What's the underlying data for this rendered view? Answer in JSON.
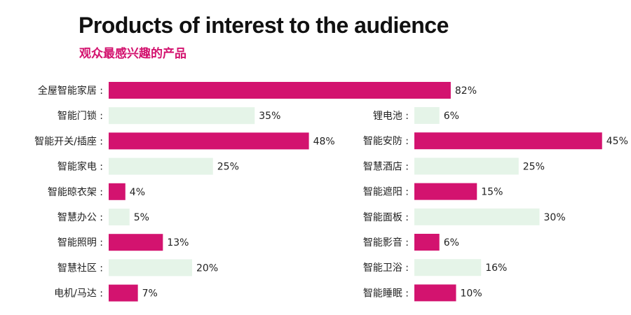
{
  "header": {
    "title": "Products of interest to the audience",
    "subtitle": "观众最感兴趣的产品"
  },
  "colors": {
    "highlight": "#d3136f",
    "light": "#e5f4e8"
  },
  "chart_data": {
    "type": "bar",
    "orientation": "horizontal",
    "title": "Products of interest to the audience",
    "subtitle": "观众最感兴趣的产品",
    "unit": "%",
    "xlim": [
      0,
      100
    ],
    "panels": [
      {
        "name": "left",
        "categories": [
          "全屋智能家居",
          "智能门锁",
          "智能开关/插座",
          "智能家电",
          "智能晾衣架",
          "智慧办公",
          "智能照明",
          "智慧社区",
          "电机/马达"
        ],
        "values": [
          82,
          35,
          48,
          25,
          4,
          5,
          13,
          20,
          7
        ],
        "value_labels": [
          "82%",
          "35%",
          "48%",
          "25%",
          "4%",
          "5%",
          "13%",
          "20%",
          "7%"
        ],
        "highlight": [
          true,
          false,
          true,
          false,
          true,
          false,
          true,
          false,
          true
        ]
      },
      {
        "name": "right",
        "categories": [
          "锂电池",
          "智能安防",
          "智慧酒店",
          "智能遮阳",
          "智能面板",
          "智能影音",
          "智能卫浴",
          "智能睡眠"
        ],
        "values": [
          6,
          45,
          25,
          15,
          30,
          6,
          16,
          10
        ],
        "value_labels": [
          "6%",
          "45%",
          "25%",
          "15%",
          "30%",
          "6%",
          "16%",
          "10%"
        ],
        "highlight": [
          false,
          true,
          false,
          true,
          false,
          true,
          false,
          true
        ]
      }
    ]
  }
}
